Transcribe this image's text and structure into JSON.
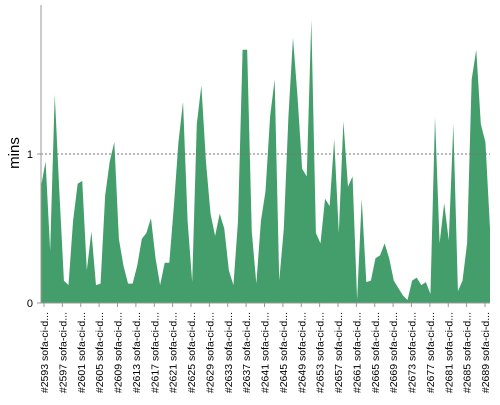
{
  "chart_data": {
    "type": "area",
    "ylabel": "mins",
    "xlabel": "",
    "title": "",
    "ylim": [
      0,
      2
    ],
    "yticks": [
      0,
      1
    ],
    "reference_line": 1,
    "grid": false,
    "colors": {
      "area": "#449e6b",
      "axis": "#999999",
      "reference": "#777777",
      "text": "#000000"
    },
    "x_labels": [
      "#2593 sofa-ci-d...",
      "#2597 sofa-ci-d...",
      "#2601 sofa-ci-d...",
      "#2605 sofa-ci-d...",
      "#2609 sofa-ci-d...",
      "#2613 sofa-ci-d...",
      "#2617 sofa-ci-d...",
      "#2621 sofa-ci-d...",
      "#2625 sofa-ci-d...",
      "#2629 sofa-ci-d...",
      "#2633 sofa-ci-d...",
      "#2637 sofa-ci-d...",
      "#2641 sofa-ci-d...",
      "#2645 sofa-ci-d...",
      "#2649 sofa-ci-d...",
      "#2653 sofa-ci-d...",
      "#2657 sofa-ci-d...",
      "#2661 sofa-ci-d...",
      "#2665 sofa-ci-d...",
      "#2669 sofa-ci-d...",
      "#2673 sofa-ci-d...",
      "#2677 sofa-ci-d...",
      "#2681 sofa-ci-d...",
      "#2685 sofa-ci-d...",
      "#2689 sofa-ci-d..."
    ],
    "values": [
      0.78,
      0.95,
      0.35,
      1.4,
      0.75,
      0.15,
      0.12,
      0.55,
      0.8,
      0.82,
      0.22,
      0.48,
      0.12,
      0.13,
      0.72,
      0.95,
      1.08,
      0.43,
      0.25,
      0.13,
      0.13,
      0.25,
      0.43,
      0.47,
      0.57,
      0.3,
      0.12,
      0.27,
      0.27,
      0.65,
      1.08,
      1.35,
      0.55,
      0.14,
      1.2,
      1.46,
      0.95,
      0.6,
      0.45,
      0.6,
      0.5,
      0.22,
      0.12,
      0.55,
      1.7,
      1.7,
      0.48,
      0.13,
      0.55,
      0.75,
      1.25,
      1.5,
      0.15,
      0.5,
      1.25,
      1.78,
      1.38,
      0.9,
      0.85,
      1.9,
      0.47,
      0.4,
      0.7,
      0.65,
      1.1,
      0.47,
      1.22,
      0.78,
      0.85,
      0.02,
      0.7,
      0.14,
      0.15,
      0.3,
      0.32,
      0.4,
      0.3,
      0.15,
      0.1,
      0.05,
      0.02,
      0.15,
      0.17,
      0.12,
      0.14,
      0.06,
      1.25,
      0.4,
      0.67,
      0.42,
      1.2,
      0.08,
      0.15,
      0.4,
      1.5,
      1.7,
      1.2,
      1.08,
      0.5
    ]
  }
}
